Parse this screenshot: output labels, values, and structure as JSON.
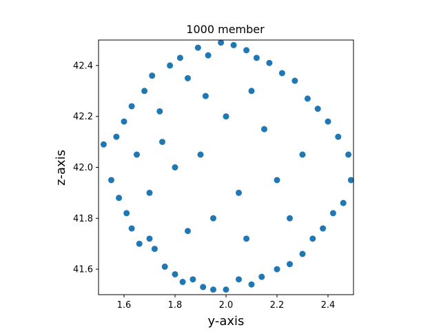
{
  "chart_data": {
    "type": "scatter",
    "title": "1000 member",
    "xlabel": "y-axis",
    "ylabel": "z-axis",
    "xlim": [
      1.5,
      2.5
    ],
    "ylim": [
      41.5,
      42.5
    ],
    "xticks": [
      1.6,
      1.8,
      2.0,
      2.2,
      2.4
    ],
    "xtick_labels": [
      "1.6",
      "1.8",
      "2.0",
      "2.2",
      "2.4"
    ],
    "yticks": [
      41.6,
      41.8,
      42.0,
      42.2,
      42.4
    ],
    "ytick_labels": [
      "41.6",
      "41.8",
      "42.0",
      "42.2",
      "42.4"
    ],
    "grid": false,
    "legend": false,
    "marker_color": "#1f77b4",
    "distribution": {
      "shape": "uniform disk",
      "center": [
        2.0,
        42.0
      ],
      "radius": 0.5
    },
    "series": [
      {
        "points": [
          [
            1.52,
            42.09
          ],
          [
            1.55,
            41.95
          ],
          [
            1.57,
            42.12
          ],
          [
            1.58,
            41.88
          ],
          [
            1.6,
            42.18
          ],
          [
            1.61,
            41.82
          ],
          [
            1.63,
            42.24
          ],
          [
            1.63,
            41.76
          ],
          [
            1.65,
            42.05
          ],
          [
            1.66,
            41.7
          ],
          [
            1.68,
            42.3
          ],
          [
            1.7,
            41.72
          ],
          [
            1.71,
            42.36
          ],
          [
            1.72,
            41.68
          ],
          [
            1.74,
            42.22
          ],
          [
            1.76,
            41.61
          ],
          [
            1.78,
            42.4
          ],
          [
            1.8,
            41.58
          ],
          [
            1.82,
            42.43
          ],
          [
            1.83,
            41.55
          ],
          [
            1.85,
            42.35
          ],
          [
            1.87,
            41.56
          ],
          [
            1.89,
            42.47
          ],
          [
            1.91,
            41.53
          ],
          [
            1.93,
            42.44
          ],
          [
            1.95,
            41.52
          ],
          [
            1.98,
            42.49
          ],
          [
            2.0,
            41.52
          ],
          [
            2.03,
            42.48
          ],
          [
            2.05,
            41.56
          ],
          [
            2.08,
            42.46
          ],
          [
            2.1,
            41.54
          ],
          [
            2.12,
            42.43
          ],
          [
            2.14,
            41.57
          ],
          [
            2.17,
            42.41
          ],
          [
            2.2,
            41.6
          ],
          [
            2.22,
            42.37
          ],
          [
            2.25,
            41.62
          ],
          [
            2.27,
            42.34
          ],
          [
            2.3,
            41.66
          ],
          [
            2.32,
            42.27
          ],
          [
            2.34,
            41.72
          ],
          [
            2.36,
            42.23
          ],
          [
            2.38,
            41.76
          ],
          [
            2.4,
            42.18
          ],
          [
            2.42,
            41.82
          ],
          [
            2.44,
            42.12
          ],
          [
            2.46,
            41.86
          ],
          [
            2.48,
            42.05
          ],
          [
            2.49,
            41.95
          ],
          [
            1.9,
            42.05
          ],
          [
            2.05,
            41.9
          ],
          [
            1.95,
            41.8
          ],
          [
            2.15,
            42.15
          ],
          [
            1.8,
            42.0
          ],
          [
            2.2,
            41.95
          ],
          [
            2.0,
            42.2
          ],
          [
            1.85,
            41.75
          ],
          [
            2.1,
            42.3
          ],
          [
            1.75,
            42.1
          ],
          [
            2.3,
            42.05
          ],
          [
            1.7,
            41.9
          ],
          [
            2.25,
            41.8
          ],
          [
            1.92,
            42.28
          ],
          [
            2.08,
            41.72
          ]
        ]
      }
    ]
  }
}
